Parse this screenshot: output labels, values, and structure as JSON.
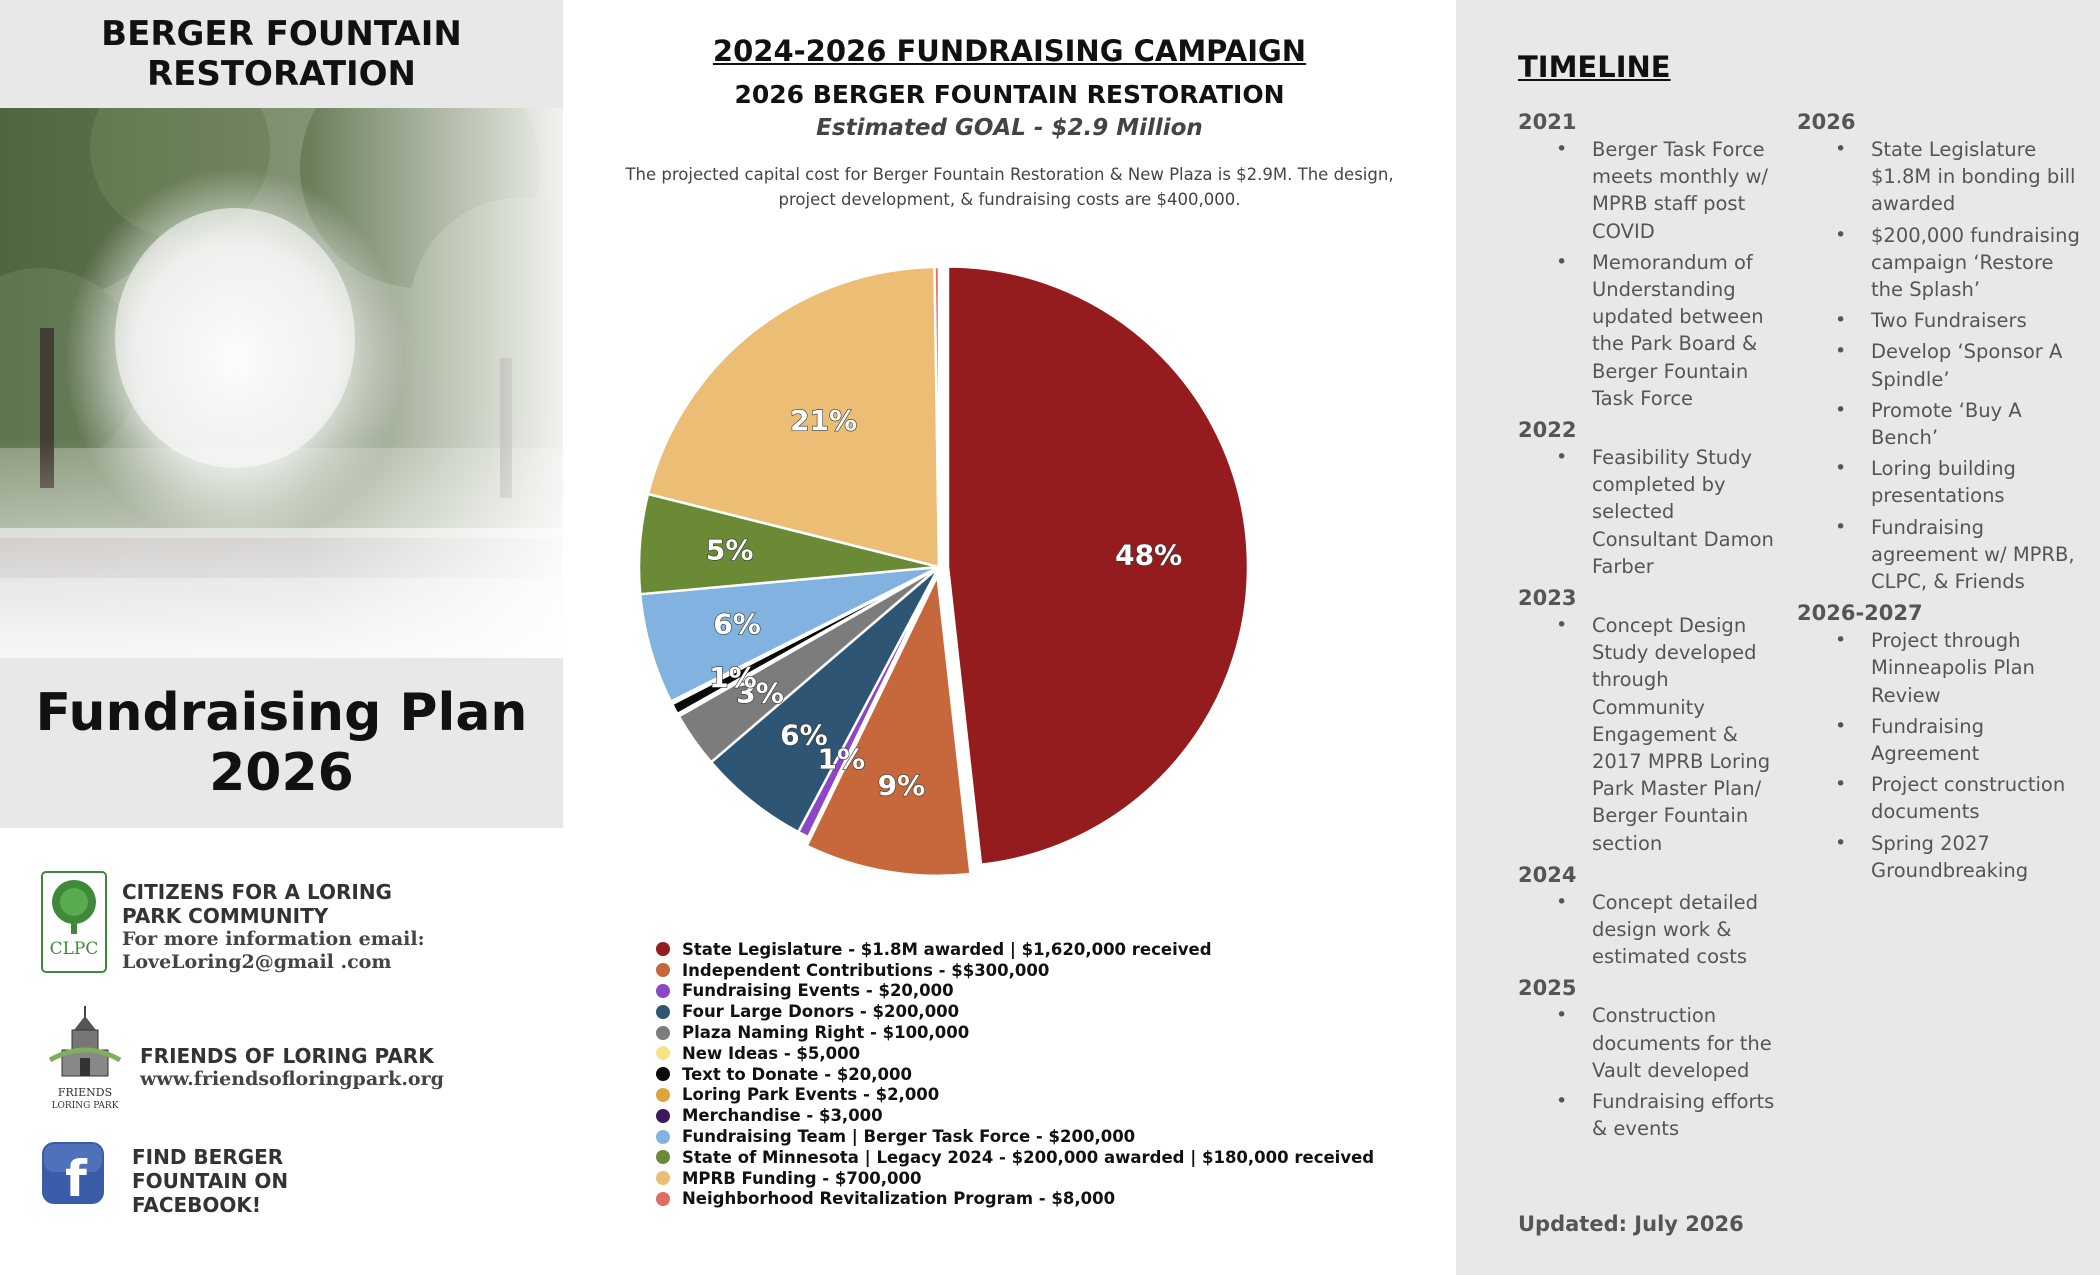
{
  "left": {
    "title": "BERGER FOUNTAIN\nRESTORATION",
    "plan_title": "Fundraising Plan\n2026",
    "orgs": [
      {
        "name": "CITIZENS FOR A LORING\nPARK COMMUNITY",
        "sub": "For more information email:\nLoveLoring2@gmail .com",
        "logo_text": "CLPC"
      },
      {
        "name": "FRIENDS OF LORING PARK",
        "sub": "www.friendsofloringpark.org",
        "logo_text": "FRIENDS\nLORING PARK"
      },
      {
        "name": "FIND BERGER\nFOUNTAIN ON\nFACEBOOK!",
        "sub": "",
        "logo_text": "f"
      }
    ]
  },
  "center": {
    "title": "2024-2026 FUNDRAISING CAMPAIGN",
    "subtitle": "2026 BERGER FOUNTAIN RESTORATION",
    "goal": "Estimated GOAL - $2.9 Million",
    "description": "The projected capital cost for Berger Fountain Restoration & New Plaza is $2.9M. The design, project development, & fundraising costs are  $400,000."
  },
  "chart_data": {
    "type": "pie",
    "title": "",
    "start_angle_deg": 0,
    "direction": "clockwise",
    "slices": [
      {
        "label": "State Legislature - $1.8M awarded | $1,620,000 received",
        "value": 1620000,
        "pct_label": "48%",
        "color": "#951c1e",
        "exploded": true
      },
      {
        "label": "Independent Contributions - $$300,000",
        "value": 300000,
        "pct_label": "9%",
        "color": "#c7683c",
        "exploded": true
      },
      {
        "label": "Fundraising Events - $20,000",
        "value": 20000,
        "pct_label": "1%",
        "color": "#8b47c6",
        "exploded": false
      },
      {
        "label": "Four Large Donors - $200,000",
        "value": 200000,
        "pct_label": "6%",
        "color": "#2f5574",
        "exploded": false
      },
      {
        "label": "Plaza Naming Right - $100,000",
        "value": 100000,
        "pct_label": "3%",
        "color": "#7c7c7c",
        "exploded": false
      },
      {
        "label": "New Ideas - $5,000",
        "value": 5000,
        "pct_label": "",
        "color": "#f7e38a",
        "exploded": false
      },
      {
        "label": "Text to Donate - $20,000",
        "value": 20000,
        "pct_label": "1%",
        "color": "#0a0a0a",
        "exploded": false
      },
      {
        "label": "Loring Park Events - $2,000",
        "value": 2000,
        "pct_label": "",
        "color": "#dba43d",
        "exploded": false
      },
      {
        "label": "Merchandise - $3,000",
        "value": 3000,
        "pct_label": "",
        "color": "#3c1a5e",
        "exploded": false
      },
      {
        "label": "Fundraising Team | Berger Task Force - $200,000",
        "value": 200000,
        "pct_label": "6%",
        "color": "#82b3e0",
        "exploded": false
      },
      {
        "label": "State of Minnesota  | Legacy 2024 - $200,000 awarded | $180,000 received",
        "value": 180000,
        "pct_label": "5%",
        "color": "#6a8a35",
        "exploded": false
      },
      {
        "label": "MPRB Funding - $700,000",
        "value": 700000,
        "pct_label": "21%",
        "color": "#ecbd74",
        "exploded": false
      },
      {
        "label": "Neighborhood Revitalization Program - $8,000",
        "value": 8000,
        "pct_label": "",
        "color": "#e06c63",
        "exploded": false
      }
    ],
    "legend_position": "bottom"
  },
  "timeline": {
    "title": "TIMELINE",
    "col1": [
      {
        "year": "2021",
        "items": [
          "Berger Task Force meets monthly w/ MPRB staff post COVID",
          "Memorandum of Understanding updated between the Park Board & Berger Fountain Task Force"
        ]
      },
      {
        "year": "2022",
        "items": [
          "Feasibility Study completed by selected Consultant Damon Farber"
        ]
      },
      {
        "year": "2023",
        "items": [
          "Concept Design Study developed through Community Engagement & 2017 MPRB Loring Park Master Plan/ Berger Fountain section"
        ]
      },
      {
        "year": "2024",
        "items": [
          "Concept detailed design work & estimated costs"
        ]
      },
      {
        "year": "2025",
        "items": [
          "Construction documents for the Vault developed",
          "Fundraising efforts & events"
        ]
      }
    ],
    "col2": [
      {
        "year": "2026",
        "items": [
          "State Legislature $1.8M in bonding bill awarded",
          "$200,000 fundraising campaign ‘Restore the Splash’",
          "Two Fundraisers",
          "Develop ‘Sponsor A Spindle’",
          "Promote ‘Buy A Bench’",
          "Loring building presentations",
          "Fundraising agreement w/ MPRB, CLPC, & Friends"
        ]
      },
      {
        "year": "2026-2027",
        "items": [
          "Project through Minneapolis Plan Review",
          "Fundraising Agreement",
          "Project construction documents",
          "Spring 2027 Groundbreaking"
        ]
      }
    ],
    "updated": "Updated: July 2026"
  }
}
